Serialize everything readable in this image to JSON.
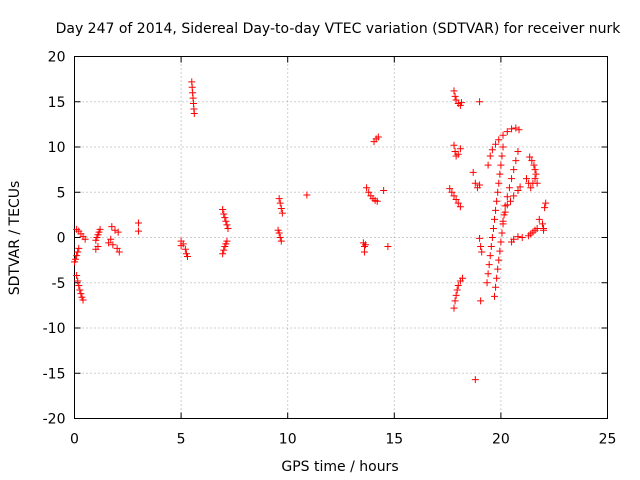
{
  "chart_data": {
    "type": "scatter",
    "title": "Day 247 of 2014, Sidereal Day-to-day VTEC variation (SDTVAR) for receiver nurk",
    "xlabel": "GPS time / hours",
    "ylabel": "SDTVAR / TECUs",
    "xlim": [
      0,
      25
    ],
    "ylim": [
      -20,
      20
    ],
    "xticks": [
      0,
      5,
      10,
      15,
      20,
      25
    ],
    "yticks": [
      -20,
      -15,
      -10,
      -5,
      0,
      5,
      10,
      15,
      20
    ],
    "grid": true,
    "marker": "+",
    "color": "#ff0000",
    "series": [
      {
        "name": "SDTVAR",
        "points": [
          [
            0.0,
            -2.7
          ],
          [
            0.05,
            -2.4
          ],
          [
            0.1,
            -2.0
          ],
          [
            0.15,
            -1.6
          ],
          [
            0.2,
            -1.2
          ],
          [
            0.1,
            0.9
          ],
          [
            0.2,
            0.7
          ],
          [
            0.3,
            0.4
          ],
          [
            0.4,
            0.1
          ],
          [
            0.5,
            -0.2
          ],
          [
            0.1,
            -4.2
          ],
          [
            0.15,
            -4.8
          ],
          [
            0.2,
            -5.3
          ],
          [
            0.25,
            -5.8
          ],
          [
            0.3,
            -6.2
          ],
          [
            0.35,
            -6.6
          ],
          [
            0.4,
            -6.9
          ],
          [
            1.0,
            -0.3
          ],
          [
            1.05,
            0.0
          ],
          [
            1.1,
            0.3
          ],
          [
            1.15,
            0.6
          ],
          [
            1.2,
            0.9
          ],
          [
            1.0,
            -1.3
          ],
          [
            1.1,
            -1.0
          ],
          [
            1.6,
            -0.6
          ],
          [
            1.7,
            -0.2
          ],
          [
            1.75,
            1.2
          ],
          [
            1.8,
            -0.8
          ],
          [
            1.9,
            0.8
          ],
          [
            2.0,
            -1.2
          ],
          [
            2.1,
            -1.6
          ],
          [
            2.05,
            0.6
          ],
          [
            3.0,
            1.6
          ],
          [
            3.0,
            0.7
          ],
          [
            5.0,
            -0.4
          ],
          [
            5.1,
            -0.7
          ],
          [
            5.2,
            -1.3
          ],
          [
            5.25,
            -1.8
          ],
          [
            5.3,
            -2.1
          ],
          [
            5.0,
            -0.9
          ],
          [
            5.5,
            17.2
          ],
          [
            5.52,
            16.6
          ],
          [
            5.54,
            16.0
          ],
          [
            5.56,
            15.4
          ],
          [
            5.58,
            14.8
          ],
          [
            5.6,
            14.2
          ],
          [
            5.62,
            13.7
          ],
          [
            6.95,
            3.1
          ],
          [
            7.0,
            2.6
          ],
          [
            7.05,
            2.2
          ],
          [
            7.1,
            1.8
          ],
          [
            7.15,
            1.4
          ],
          [
            7.2,
            1.0
          ],
          [
            6.95,
            -1.8
          ],
          [
            7.0,
            -1.4
          ],
          [
            7.05,
            -1.0
          ],
          [
            7.1,
            -0.7
          ],
          [
            7.15,
            -0.4
          ],
          [
            9.6,
            4.3
          ],
          [
            9.65,
            3.8
          ],
          [
            9.7,
            3.2
          ],
          [
            9.75,
            2.7
          ],
          [
            9.6,
            0.5
          ],
          [
            9.65,
            0.0
          ],
          [
            9.7,
            -0.4
          ],
          [
            9.55,
            0.8
          ],
          [
            10.9,
            4.7
          ],
          [
            13.55,
            -0.6
          ],
          [
            13.6,
            -1.0
          ],
          [
            13.6,
            -1.6
          ],
          [
            13.65,
            -0.8
          ],
          [
            13.7,
            5.5
          ],
          [
            13.8,
            5.0
          ],
          [
            13.9,
            4.6
          ],
          [
            14.0,
            4.3
          ],
          [
            14.1,
            4.1
          ],
          [
            14.2,
            4.0
          ],
          [
            14.05,
            10.6
          ],
          [
            14.15,
            10.9
          ],
          [
            14.25,
            11.1
          ],
          [
            14.5,
            5.2
          ],
          [
            14.7,
            -1.0
          ],
          [
            17.6,
            5.4
          ],
          [
            17.7,
            5.0
          ],
          [
            17.8,
            4.6
          ],
          [
            17.9,
            4.2
          ],
          [
            18.0,
            3.8
          ],
          [
            18.1,
            3.4
          ],
          [
            17.8,
            16.2
          ],
          [
            17.85,
            15.6
          ],
          [
            17.9,
            15.2
          ],
          [
            18.0,
            14.8
          ],
          [
            18.1,
            14.6
          ],
          [
            18.15,
            14.9
          ],
          [
            17.8,
            10.2
          ],
          [
            17.85,
            9.5
          ],
          [
            17.9,
            9.0
          ],
          [
            18.0,
            9.2
          ],
          [
            18.1,
            9.8
          ],
          [
            17.8,
            -7.8
          ],
          [
            17.85,
            -7.0
          ],
          [
            17.9,
            -6.4
          ],
          [
            17.95,
            -5.8
          ],
          [
            18.0,
            -5.3
          ],
          [
            18.1,
            -4.8
          ],
          [
            18.2,
            -4.5
          ],
          [
            18.7,
            7.2
          ],
          [
            18.8,
            6.0
          ],
          [
            18.9,
            5.5
          ],
          [
            19.0,
            5.8
          ],
          [
            18.8,
            -15.7
          ],
          [
            19.05,
            -7.0
          ],
          [
            19.0,
            15.0
          ],
          [
            19.0,
            -0.1
          ],
          [
            19.05,
            -1.0
          ],
          [
            19.1,
            -1.6
          ],
          [
            19.35,
            -5.0
          ],
          [
            19.4,
            -4.0
          ],
          [
            19.45,
            -3.0
          ],
          [
            19.5,
            -2.0
          ],
          [
            19.55,
            -1.0
          ],
          [
            19.6,
            0.0
          ],
          [
            19.65,
            1.0
          ],
          [
            19.7,
            2.0
          ],
          [
            19.75,
            3.0
          ],
          [
            19.8,
            4.0
          ],
          [
            19.85,
            5.0
          ],
          [
            19.9,
            6.0
          ],
          [
            19.95,
            7.0
          ],
          [
            20.0,
            8.0
          ],
          [
            20.05,
            9.0
          ],
          [
            20.1,
            10.0
          ],
          [
            19.4,
            8.0
          ],
          [
            19.5,
            9.0
          ],
          [
            19.6,
            9.7
          ],
          [
            19.75,
            10.3
          ],
          [
            19.9,
            10.8
          ],
          [
            20.1,
            11.3
          ],
          [
            20.3,
            11.7
          ],
          [
            20.5,
            12.0
          ],
          [
            20.7,
            12.1
          ],
          [
            20.85,
            11.9
          ],
          [
            19.7,
            -6.5
          ],
          [
            19.75,
            -5.5
          ],
          [
            19.8,
            -4.5
          ],
          [
            19.85,
            -3.5
          ],
          [
            19.9,
            -2.5
          ],
          [
            19.95,
            -1.5
          ],
          [
            20.0,
            -0.5
          ],
          [
            20.05,
            0.5
          ],
          [
            20.1,
            1.5
          ],
          [
            20.15,
            2.5
          ],
          [
            20.2,
            3.5
          ],
          [
            20.3,
            4.5
          ],
          [
            20.4,
            5.5
          ],
          [
            20.5,
            6.5
          ],
          [
            20.6,
            7.5
          ],
          [
            20.7,
            8.5
          ],
          [
            20.8,
            9.5
          ],
          [
            20.1,
            1.8
          ],
          [
            20.2,
            2.8
          ],
          [
            20.3,
            3.6
          ],
          [
            20.45,
            4.0
          ],
          [
            20.6,
            4.6
          ],
          [
            20.8,
            5.2
          ],
          [
            20.9,
            5.6
          ],
          [
            20.5,
            -0.5
          ],
          [
            20.6,
            -0.2
          ],
          [
            20.8,
            0.1
          ],
          [
            21.0,
            0.0
          ],
          [
            21.3,
            0.2
          ],
          [
            21.4,
            0.4
          ],
          [
            21.5,
            0.6
          ],
          [
            21.6,
            0.8
          ],
          [
            21.7,
            1.0
          ],
          [
            21.2,
            6.5
          ],
          [
            21.3,
            6.0
          ],
          [
            21.4,
            5.5
          ],
          [
            21.5,
            6.0
          ],
          [
            21.6,
            6.5
          ],
          [
            21.7,
            6.0
          ],
          [
            21.35,
            8.9
          ],
          [
            21.45,
            8.5
          ],
          [
            21.55,
            8.0
          ],
          [
            21.6,
            7.5
          ],
          [
            21.65,
            7.0
          ],
          [
            21.8,
            2.0
          ],
          [
            21.95,
            1.5
          ],
          [
            22.0,
            1.0
          ],
          [
            22.05,
            3.3
          ],
          [
            22.1,
            3.8
          ],
          [
            22.0,
            0.8
          ]
        ]
      }
    ]
  }
}
